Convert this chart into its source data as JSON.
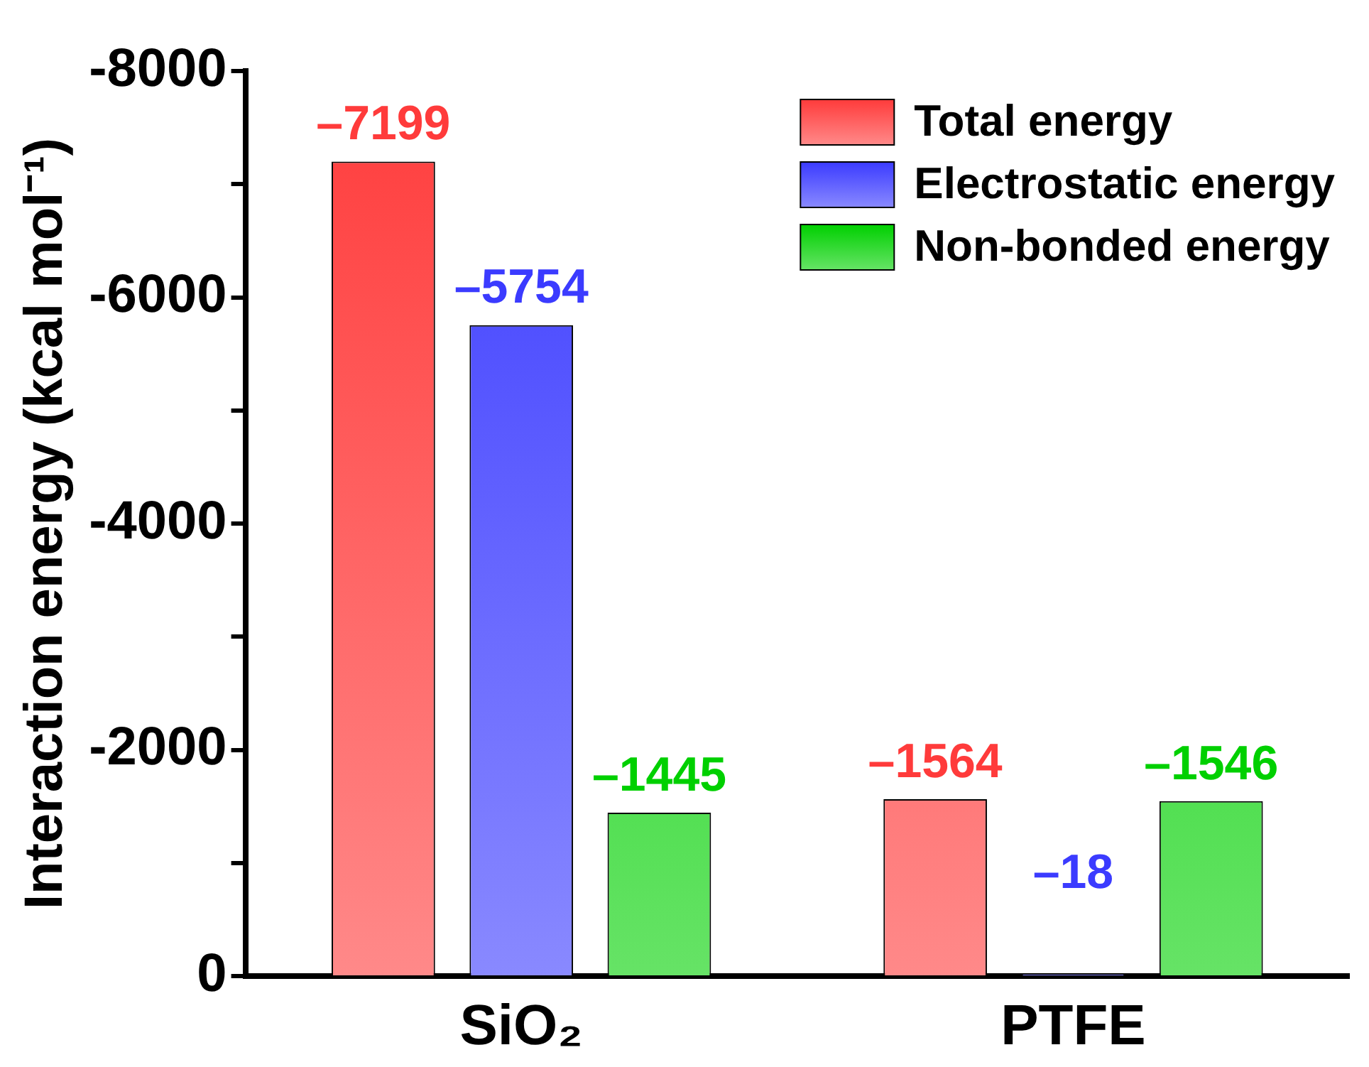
{
  "chart_data": {
    "type": "bar",
    "ylabel": "Interaction energy (kcal mol⁻¹)",
    "categories": [
      "SiO₂",
      "PTFE"
    ],
    "series": [
      {
        "name": "Total energy",
        "color": "#ff3b3b",
        "values": [
          -7199,
          -1564
        ],
        "value_labels": [
          "–7199",
          "–1564"
        ]
      },
      {
        "name": "Electrostatic energy",
        "color": "#3b3bff",
        "values": [
          -5754,
          -18
        ],
        "value_labels": [
          "–5754",
          "–18"
        ]
      },
      {
        "name": "Non-bonded energy",
        "color": "#00d000",
        "values": [
          -1445,
          -1546
        ],
        "value_labels": [
          "–1445",
          "–1546"
        ]
      }
    ],
    "ylim": [
      0,
      -8000
    ],
    "yticks": [
      0,
      {
        "value": -1000,
        "label": null
      },
      -2000,
      {
        "value": -3000,
        "label": null
      },
      -4000,
      {
        "value": -5000,
        "label": null
      },
      -6000,
      {
        "value": -7000,
        "label": null
      },
      -8000
    ],
    "grid": false,
    "legend": "top right"
  }
}
